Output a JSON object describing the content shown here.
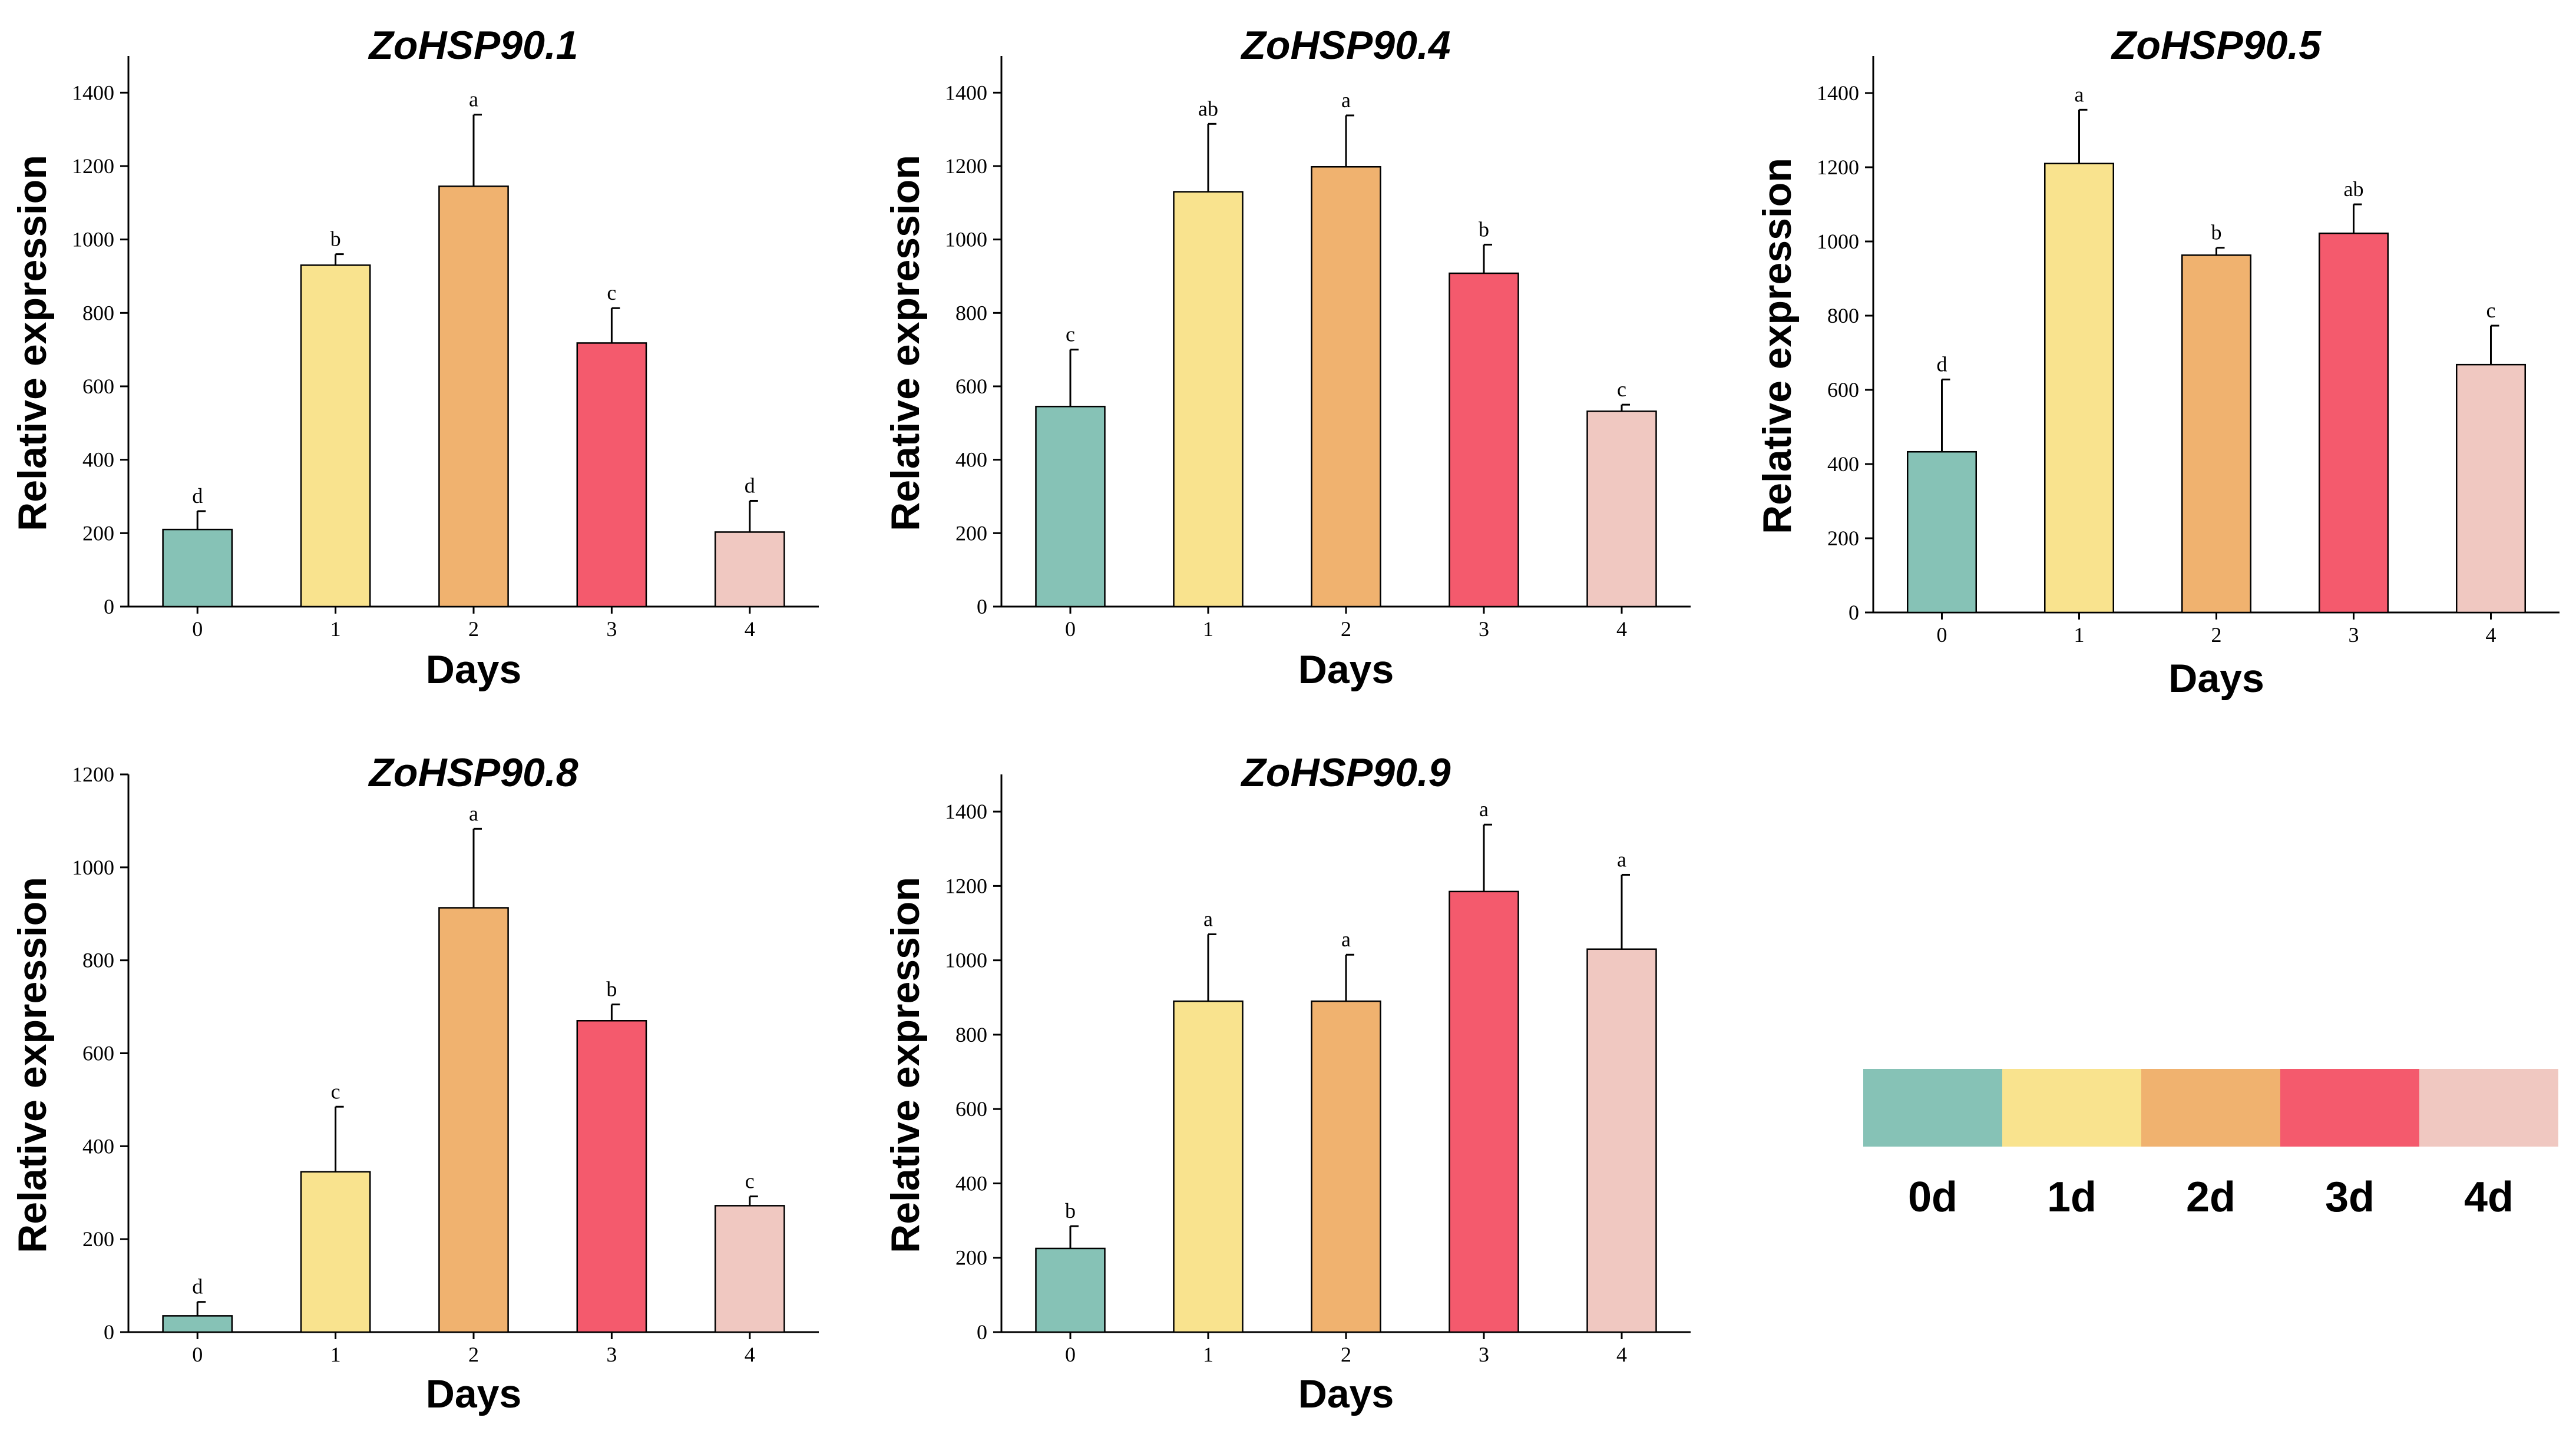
{
  "chart_data": [
    {
      "type": "bar",
      "title": "ZoHSP90.1",
      "xlabel": "Days",
      "ylabel": "Relative expression",
      "categories": [
        "0",
        "1",
        "2",
        "3",
        "4"
      ],
      "values": [
        210,
        930,
        1145,
        718,
        203
      ],
      "errors": [
        50,
        30,
        195,
        95,
        85
      ],
      "significance": [
        "d",
        "b",
        "a",
        "c",
        "d"
      ],
      "ylim": [
        0,
        1500
      ],
      "yticks": [
        0,
        200,
        400,
        600,
        800,
        1000,
        1200,
        1400
      ]
    },
    {
      "type": "bar",
      "title": "ZoHSP90.4",
      "xlabel": "Days",
      "ylabel": "Relative expression",
      "categories": [
        "0",
        "1",
        "2",
        "3",
        "4"
      ],
      "values": [
        545,
        1130,
        1198,
        908,
        532
      ],
      "errors": [
        155,
        185,
        140,
        78,
        18
      ],
      "significance": [
        "c",
        "ab",
        "a",
        "b",
        "c"
      ],
      "ylim": [
        0,
        1500
      ],
      "yticks": [
        0,
        200,
        400,
        600,
        800,
        1000,
        1200,
        1400
      ]
    },
    {
      "type": "bar",
      "title": "ZoHSP90.5",
      "xlabel": "Days",
      "ylabel": "Relative expression",
      "categories": [
        "0",
        "1",
        "2",
        "3",
        "4"
      ],
      "values": [
        433,
        1210,
        963,
        1022,
        668
      ],
      "errors": [
        195,
        145,
        20,
        78,
        105
      ],
      "significance": [
        "d",
        "a",
        "b",
        "ab",
        "c"
      ],
      "ylim": [
        0,
        1500
      ],
      "yticks": [
        0,
        200,
        400,
        600,
        800,
        1000,
        1200,
        1400
      ]
    },
    {
      "type": "bar",
      "title": "ZoHSP90.8",
      "xlabel": "Days",
      "ylabel": "Relative expression",
      "categories": [
        "0",
        "1",
        "2",
        "3",
        "4"
      ],
      "values": [
        35,
        345,
        913,
        670,
        272
      ],
      "errors": [
        30,
        140,
        170,
        35,
        20
      ],
      "significance": [
        "d",
        "c",
        "a",
        "b",
        "c"
      ],
      "ylim": [
        0,
        1200
      ],
      "yticks": [
        0,
        200,
        400,
        600,
        800,
        1000,
        1200
      ]
    },
    {
      "type": "bar",
      "title": "ZoHSP90.9",
      "xlabel": "Days",
      "ylabel": "Relative expression",
      "categories": [
        "0",
        "1",
        "2",
        "3",
        "4"
      ],
      "values": [
        225,
        890,
        890,
        1185,
        1030
      ],
      "errors": [
        60,
        180,
        125,
        180,
        200
      ],
      "significance": [
        "b",
        "a",
        "a",
        "a",
        "a"
      ],
      "ylim": [
        0,
        1500
      ],
      "yticks": [
        0,
        200,
        400,
        600,
        800,
        1000,
        1200,
        1400
      ]
    }
  ],
  "colors": [
    "#86c2b6",
    "#f9e38e",
    "#f0b26f",
    "#f45a6d",
    "#f0c8c1"
  ],
  "legend": {
    "labels": [
      "0d",
      "1d",
      "2d",
      "3d",
      "4d"
    ]
  }
}
